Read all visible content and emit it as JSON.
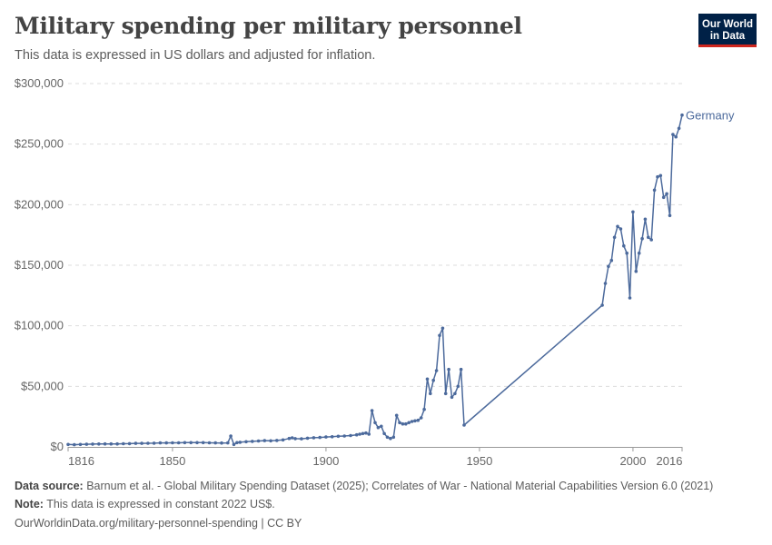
{
  "header": {
    "title": "Military spending per military personnel",
    "subtitle": "This data is expressed in US dollars and adjusted for inflation.",
    "logo_line1": "Our World",
    "logo_line2": "in Data"
  },
  "footer": {
    "source_label": "Data source:",
    "source_text": "Barnum et al. - Global Military Spending Dataset (2025); Correlates of War - National Material Capabilities Version 6.0 (2021)",
    "note_label": "Note:",
    "note_text": "This data is expressed in constant 2022 US$.",
    "url": "OurWorldinData.org/military-personnel-spending | CC BY"
  },
  "colors": {
    "series": "#4c6a9c",
    "grid": "#dddddd",
    "axis": "#999999",
    "logo_bg": "#002147",
    "logo_accent": "#ce261e"
  },
  "chart_data": {
    "type": "line",
    "title": "Military spending per military personnel",
    "xlabel": "",
    "ylabel": "",
    "xlim": [
      1816,
      2016
    ],
    "ylim": [
      0,
      300000
    ],
    "x_ticks": [
      1816,
      1850,
      1900,
      1950,
      2000,
      2016
    ],
    "y_ticks": [
      0,
      50000,
      100000,
      150000,
      200000,
      250000,
      300000
    ],
    "y_tick_labels": [
      "$0",
      "$50,000",
      "$100,000",
      "$150,000",
      "$200,000",
      "$250,000",
      "$300,000"
    ],
    "grid": "horizontal dashed",
    "series": [
      {
        "name": "Germany",
        "x": [
          1816,
          1818,
          1820,
          1822,
          1824,
          1826,
          1828,
          1830,
          1832,
          1834,
          1836,
          1838,
          1840,
          1842,
          1844,
          1846,
          1848,
          1850,
          1852,
          1854,
          1856,
          1858,
          1860,
          1862,
          1864,
          1866,
          1868,
          1869,
          1870,
          1871,
          1872,
          1874,
          1876,
          1878,
          1880,
          1882,
          1884,
          1886,
          1888,
          1889,
          1890,
          1892,
          1894,
          1896,
          1898,
          1900,
          1902,
          1904,
          1906,
          1908,
          1910,
          1911,
          1912,
          1913,
          1914,
          1915,
          1916,
          1917,
          1918,
          1919,
          1920,
          1921,
          1922,
          1923,
          1924,
          1925,
          1926,
          1927,
          1928,
          1929,
          1930,
          1931,
          1932,
          1933,
          1934,
          1935,
          1936,
          1937,
          1938,
          1939,
          1940,
          1941,
          1942,
          1943,
          1944,
          1945,
          1990,
          1991,
          1992,
          1993,
          1994,
          1995,
          1996,
          1997,
          1998,
          1999,
          2000,
          2001,
          2002,
          2003,
          2004,
          2005,
          2006,
          2007,
          2008,
          2009,
          2010,
          2011,
          2012,
          2013,
          2014,
          2015,
          2016
        ],
        "values": [
          2000,
          1800,
          2000,
          2200,
          2300,
          2400,
          2500,
          2500,
          2500,
          2600,
          2700,
          2900,
          2900,
          3000,
          3100,
          3300,
          3300,
          3400,
          3400,
          3500,
          3500,
          3500,
          3500,
          3400,
          3300,
          3200,
          3300,
          9000,
          2000,
          3500,
          3800,
          4300,
          4600,
          4900,
          5200,
          5000,
          5300,
          5800,
          7000,
          7500,
          6800,
          6700,
          7200,
          7600,
          7800,
          8200,
          8400,
          8800,
          9000,
          9400,
          10000,
          10500,
          11000,
          11500,
          10500,
          30000,
          20000,
          16000,
          17000,
          11000,
          8000,
          7000,
          8000,
          26000,
          20000,
          19000,
          19000,
          20000,
          21000,
          21500,
          22000,
          24000,
          31000,
          56000,
          44000,
          55000,
          63000,
          92000,
          98000,
          44000,
          64000,
          41000,
          44000,
          50000,
          64000,
          18000,
          117000,
          135000,
          149000,
          154000,
          173000,
          182000,
          180000,
          166000,
          160000,
          123000,
          194000,
          145000,
          160000,
          172000,
          188000,
          173000,
          171000,
          212000,
          223000,
          224000,
          206000,
          209000,
          191000,
          258000,
          256000,
          263000,
          274000
        ]
      }
    ]
  }
}
